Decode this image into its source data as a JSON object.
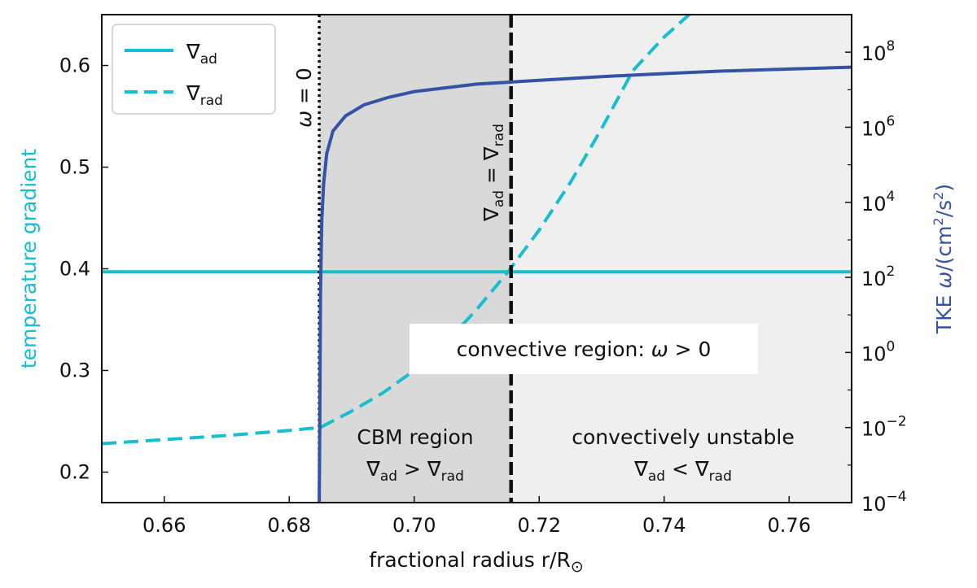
{
  "chart_data": {
    "type": "line",
    "xlabel": "fractional radius r/R",
    "xlabel_sub": "⊙",
    "ylabel_left": "temperature gradient",
    "ylabel_right_prefix": "TKE ",
    "ylabel_right_var": "ω",
    "ylabel_right_units": "/(cm",
    "ylabel_right_units2": "/s",
    "ylabel_right_units3": ")",
    "xlim": [
      0.65,
      0.77
    ],
    "ylim_left": [
      0.17,
      0.65
    ],
    "ylim_right_log10": [
      -4,
      9
    ],
    "right_axis_scale": "log",
    "grid": false,
    "legend_placement": "top-left",
    "x_ticks": [
      0.66,
      0.68,
      0.7,
      0.72,
      0.74,
      0.76
    ],
    "x_tick_labels": [
      "0.66",
      "0.68",
      "0.70",
      "0.72",
      "0.74",
      "0.76"
    ],
    "y_ticks_left": [
      0.2,
      0.3,
      0.4,
      0.5,
      0.6
    ],
    "y_tick_labels_left": [
      "0.2",
      "0.3",
      "0.4",
      "0.5",
      "0.6"
    ],
    "y_ticks_right_exp": [
      -4,
      -2,
      0,
      2,
      4,
      6,
      8
    ],
    "y_tick_labels_right_exp": [
      "−4",
      "−2",
      "0",
      "2",
      "4",
      "6",
      "8"
    ],
    "y_tick_base": "10",
    "colors": {
      "nabla_ad": "#17becf",
      "nabla_rad": "#17becf",
      "tke": "#3452a6",
      "cbm_shade": "#d9d9d9",
      "unstable_shade": "#efefef"
    },
    "series": [
      {
        "name": "∇ad",
        "legend_main": "∇",
        "legend_sub": "ad",
        "axis": "left",
        "style": "solid",
        "x": [
          0.65,
          0.77
        ],
        "y": [
          0.397,
          0.397
        ]
      },
      {
        "name": "∇rad",
        "legend_main": "∇",
        "legend_sub": "rad",
        "axis": "left",
        "style": "dashed",
        "x": [
          0.65,
          0.66,
          0.67,
          0.68,
          0.685,
          0.69,
          0.695,
          0.7,
          0.705,
          0.71,
          0.715,
          0.72,
          0.725,
          0.73,
          0.735,
          0.74,
          0.744
        ],
        "y": [
          0.228,
          0.232,
          0.236,
          0.241,
          0.244,
          0.26,
          0.278,
          0.3,
          0.327,
          0.36,
          0.397,
          0.438,
          0.485,
          0.538,
          0.595,
          0.628,
          0.65
        ]
      },
      {
        "axis": "right",
        "style": "solid",
        "x": [
          0.6848,
          0.6849,
          0.685,
          0.6852,
          0.6855,
          0.686,
          0.687,
          0.689,
          0.692,
          0.696,
          0.7,
          0.705,
          0.71,
          0.715,
          0.72,
          0.73,
          0.74,
          0.75,
          0.76,
          0.77
        ],
        "y_log10": [
          -4.0,
          -1.5,
          1.5,
          3.5,
          4.5,
          5.3,
          5.9,
          6.3,
          6.6,
          6.8,
          6.95,
          7.05,
          7.15,
          7.2,
          7.25,
          7.35,
          7.43,
          7.5,
          7.55,
          7.6
        ]
      }
    ],
    "regions": [
      {
        "name": "cbm",
        "x_start": 0.6848,
        "x_end": 0.7155
      },
      {
        "name": "unstable",
        "x_start": 0.7155,
        "x_end": 0.77
      }
    ],
    "vlines": [
      {
        "name": "omega-zero",
        "x": 0.6848,
        "style": "dotted"
      },
      {
        "name": "nabla-equal",
        "x": 0.7155,
        "style": "dashed"
      }
    ],
    "annotations": {
      "omega_zero": {
        "var": "ω",
        "rest": " = 0"
      },
      "nabla_equal": {
        "a": "∇",
        "a_sub": "ad",
        "eq": " = ∇",
        "b_sub": "rad"
      },
      "convective": {
        "text": "convective region: ",
        "var": "ω",
        "rest": " > 0"
      },
      "cbm_title": "CBM region",
      "cbm_cond": {
        "a": "∇",
        "a_sub": "ad",
        "op": " > ∇",
        "b_sub": "rad"
      },
      "unstable_title": "convectively unstable",
      "unstable_cond": {
        "a": "∇",
        "a_sub": "ad",
        "op": " < ∇",
        "b_sub": "rad"
      }
    }
  }
}
